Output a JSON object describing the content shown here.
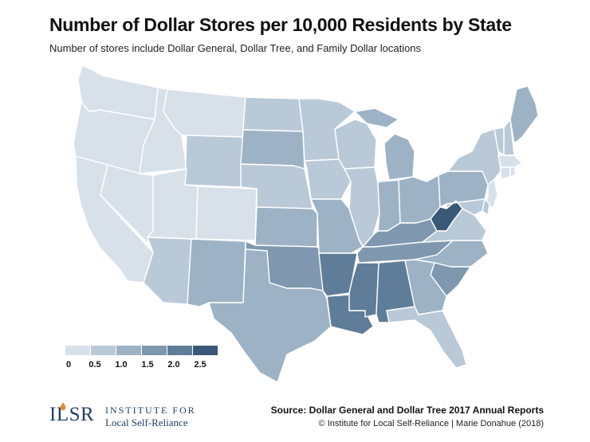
{
  "title": "Number of Dollar Stores per 10,000 Residents by State",
  "subtitle": "Number of stores include Dollar General, Dollar Tree, and Family Dollar locations",
  "legend": {
    "ticks": [
      "0",
      "0.5",
      "1.0",
      "1.5",
      "2.0",
      "2.5"
    ],
    "colors": [
      "#d8e1ea",
      "#bac9d7",
      "#9db2c5",
      "#7f98af",
      "#5f7d98",
      "#3a5878"
    ]
  },
  "map": {
    "state_levels": {
      "WA": 0,
      "OR": 0,
      "CA": 0,
      "ID": 0,
      "NV": 0,
      "MT": 0,
      "WY": 1,
      "UT": 0,
      "CO": 0,
      "AZ": 1,
      "NM": 2,
      "ND": 1,
      "SD": 2,
      "NE": 1,
      "KS": 2,
      "OK": 3,
      "TX": 2,
      "MN": 1,
      "IA": 1,
      "MO": 2,
      "AR": 4,
      "LA": 4,
      "WI": 1,
      "IL": 1,
      "MI": 2,
      "IN": 2,
      "OH": 2,
      "KY": 3,
      "TN": 3,
      "MS": 4,
      "AL": 4,
      "WV": 5,
      "VA": 1,
      "NC": 2,
      "SC": 3,
      "GA": 2,
      "FL": 1,
      "PA": 2,
      "NY": 1,
      "NJ": 0,
      "DE": 1,
      "MD": 1,
      "VT": 1,
      "NH": 1,
      "ME": 2,
      "MA": 0,
      "CT": 0,
      "RI": 0
    }
  },
  "logo": {
    "mark": "ILSR",
    "line1": "INSTITUTE FOR",
    "line2": "Local Self-Reliance"
  },
  "source": "Source: Dollar General and Dollar Tree 2017 Annual Reports",
  "credit": "© Institute for Local Self-Reliance | Marie Donahue (2018)"
}
